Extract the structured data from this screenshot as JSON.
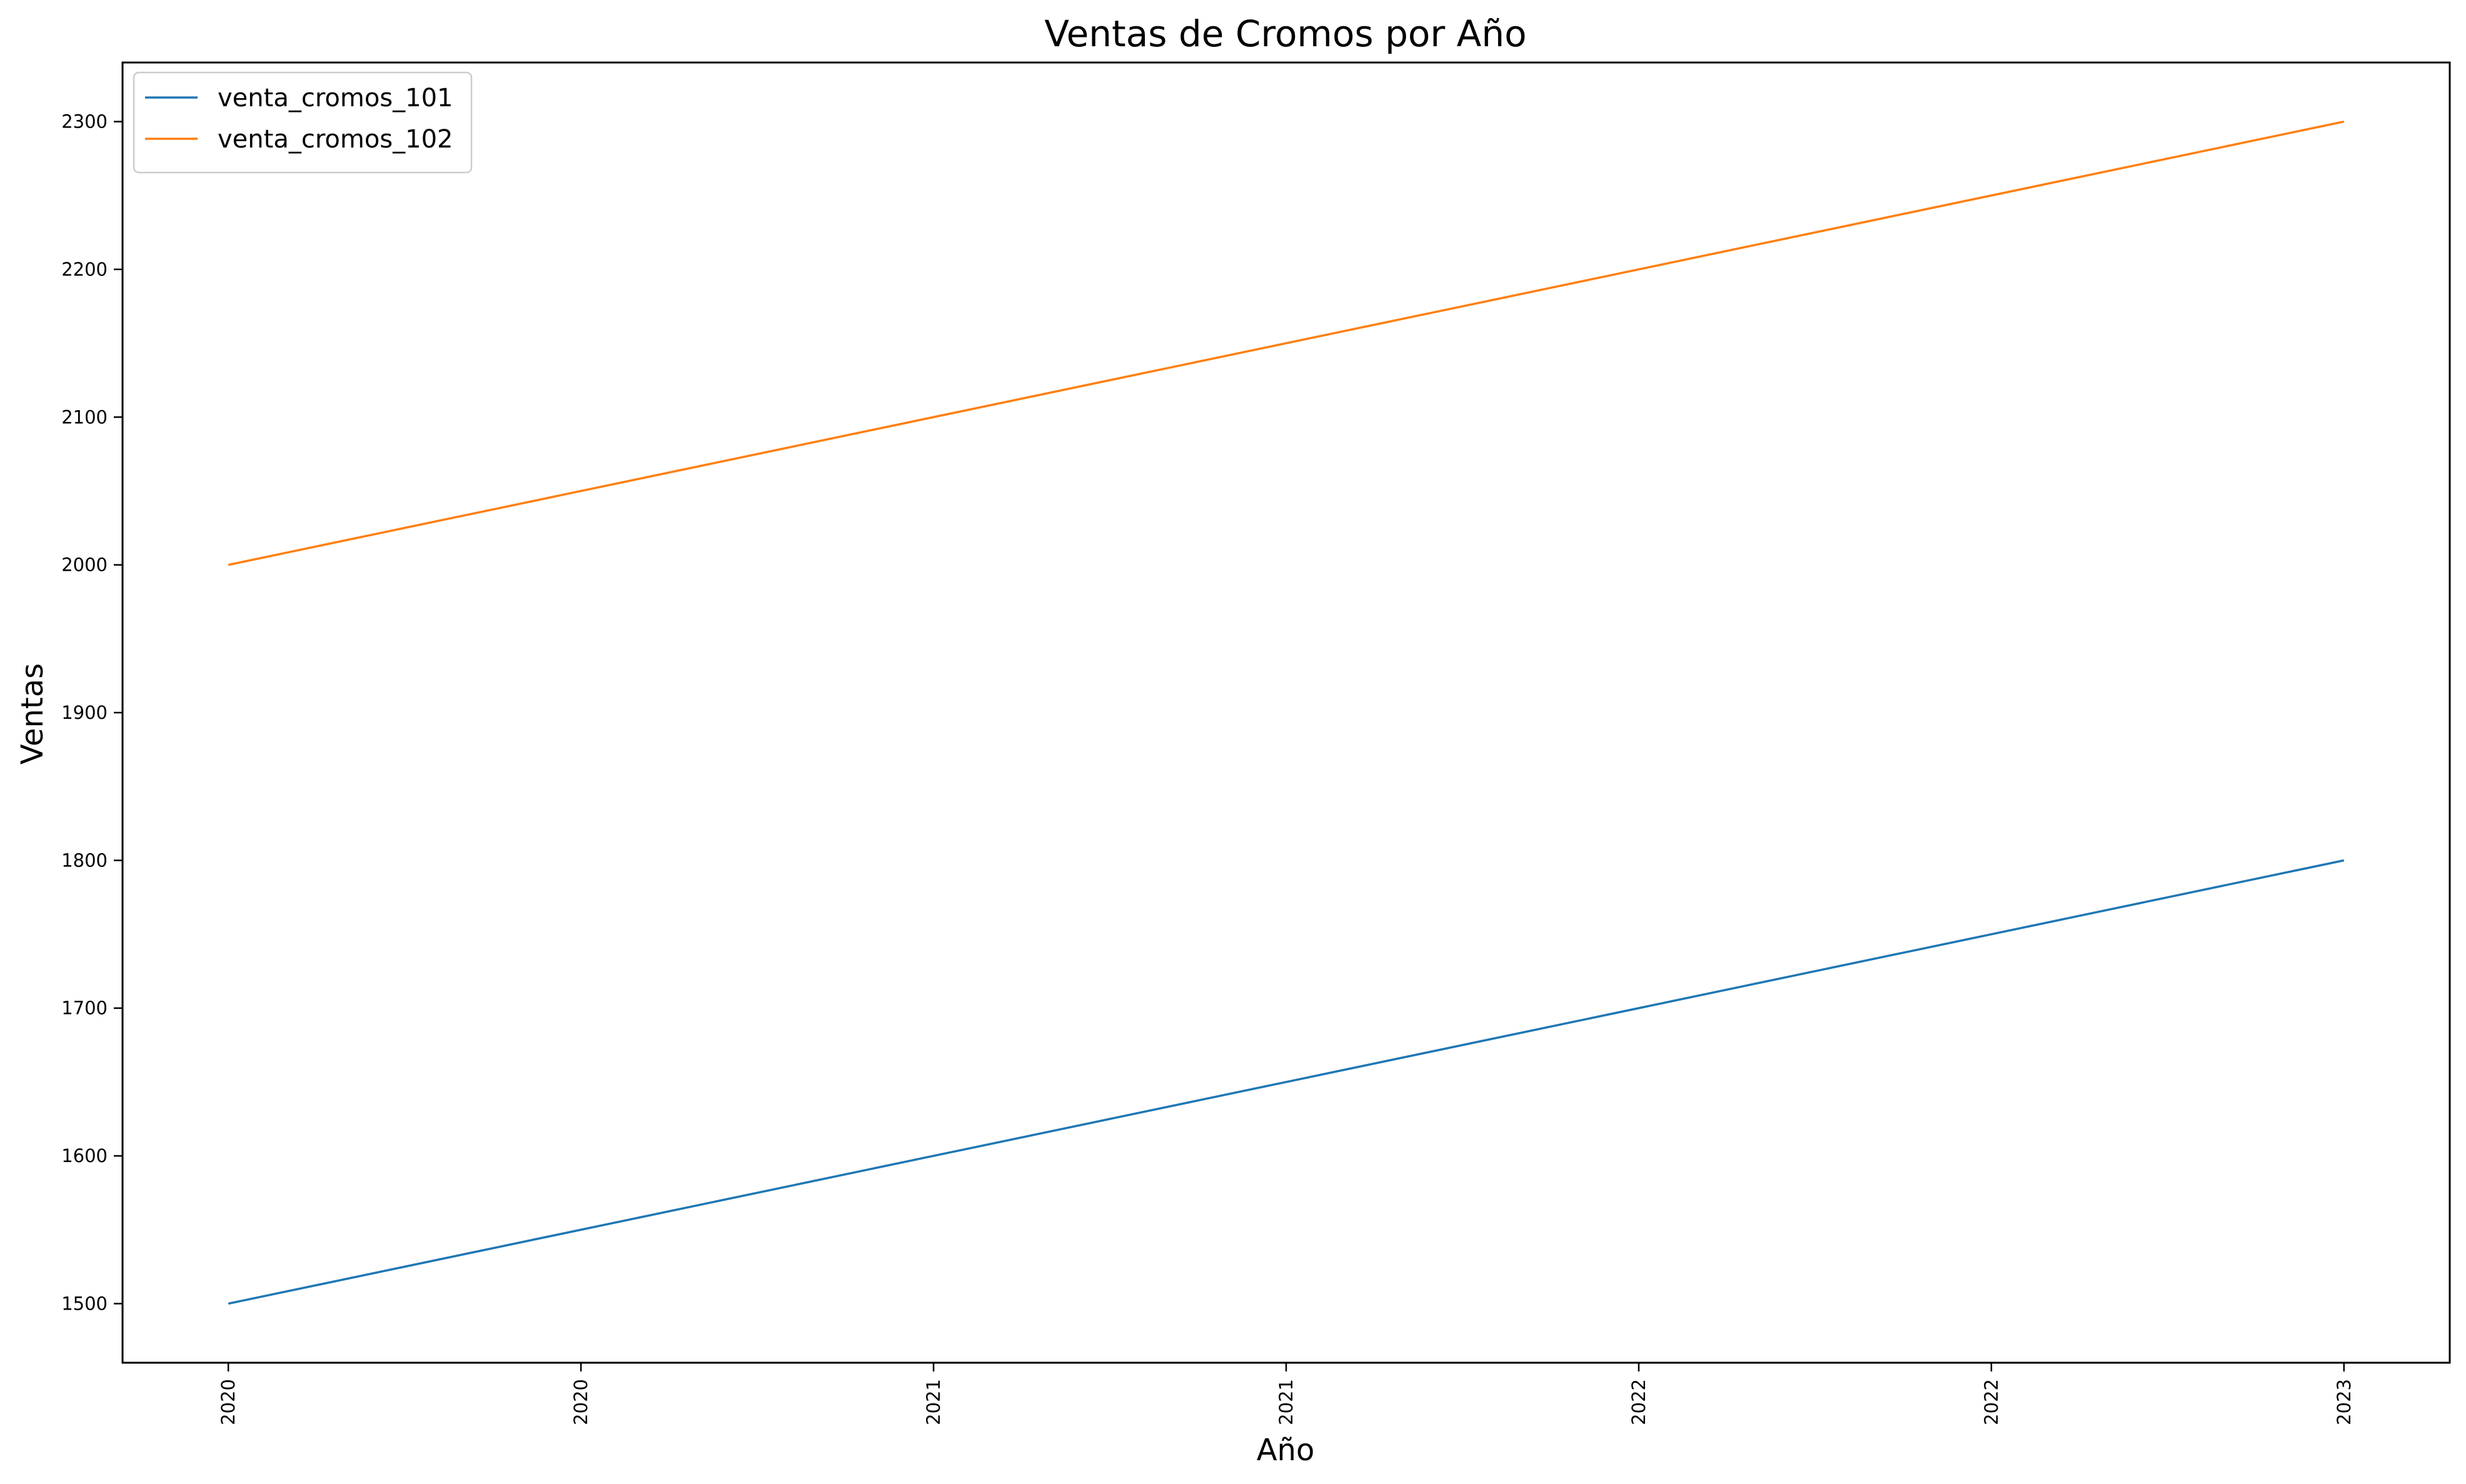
{
  "chart_data": {
    "type": "line",
    "title": "Ventas de Cromos por Año",
    "xlabel": "Año",
    "ylabel": "Ventas",
    "x": [
      0,
      1,
      2,
      3,
      4,
      5,
      6
    ],
    "x_tick_labels": [
      "2020",
      "2020",
      "2021",
      "2021",
      "2022",
      "2022",
      "2023"
    ],
    "xlim": [
      -0.3,
      6.3
    ],
    "ylim": [
      1460,
      2340
    ],
    "y_ticks": [
      1500,
      1600,
      1700,
      1800,
      1900,
      2000,
      2100,
      2200,
      2300
    ],
    "grid": false,
    "legend_position": "top-left",
    "series": [
      {
        "name": "venta_cromos_101",
        "color": "#1f77b4",
        "values": [
          1500,
          1550,
          1600,
          1650,
          1700,
          1750,
          1800
        ]
      },
      {
        "name": "venta_cromos_102",
        "color": "#ff7f0e",
        "values": [
          2000,
          2050,
          2100,
          2150,
          2200,
          2250,
          2300
        ]
      }
    ]
  }
}
